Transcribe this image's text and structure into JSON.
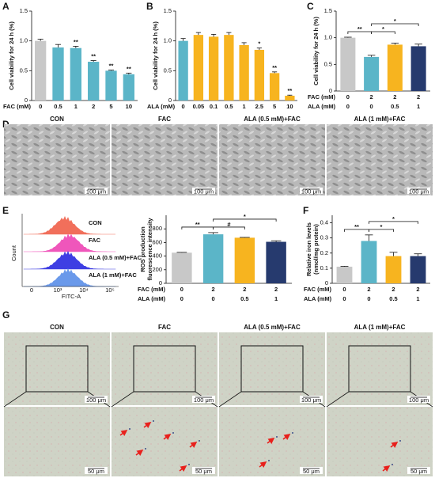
{
  "chart_data": [
    {
      "type": "bar",
      "label": "A",
      "ylabel": [
        "Cell viability for 24 h (%)"
      ],
      "rows": [
        {
          "name": "FAC (mM)",
          "categories": [
            "0",
            "0.5",
            "1",
            "2",
            "5",
            "10"
          ]
        }
      ],
      "values": [
        1.0,
        0.89,
        0.88,
        0.65,
        0.5,
        0.44
      ],
      "errors": [
        0.03,
        0.05,
        0.03,
        0.02,
        0.01,
        0.02
      ],
      "colors": [
        "#c8c8c8",
        "#5bb5c8",
        "#5bb5c8",
        "#5bb5c8",
        "#5bb5c8",
        "#5bb5c8"
      ],
      "significance": [
        null,
        null,
        "**",
        "**",
        "**",
        "**"
      ],
      "ylim": [
        0,
        1.5
      ],
      "yticks": [
        0,
        0.5,
        {
          "value": 1,
          "label": "1.0"
        },
        1.5
      ]
    },
    {
      "type": "bar",
      "label": "B",
      "ylabel": [
        "Cell viability for 24 h (%)"
      ],
      "rows": [
        {
          "name": "ALA (mM)",
          "categories": [
            "0",
            "0.05",
            "0.1",
            "0.5",
            "1",
            "2.5",
            "5",
            "10"
          ]
        }
      ],
      "values": [
        1.0,
        1.1,
        1.07,
        1.1,
        0.93,
        0.85,
        0.46,
        0.08
      ],
      "errors": [
        0.04,
        0.04,
        0.04,
        0.04,
        0.04,
        0.03,
        0.02,
        0.01
      ],
      "colors": [
        "#5bb5c8",
        "#f7b41f",
        "#f7b41f",
        "#f7b41f",
        "#f7b41f",
        "#f7b41f",
        "#f7b41f",
        "#f7b41f"
      ],
      "significance": [
        null,
        null,
        null,
        null,
        null,
        "*",
        "**",
        "**"
      ],
      "ylim": [
        0,
        1.5
      ],
      "yticks": [
        0,
        0.5,
        {
          "value": 1,
          "label": "1.0"
        },
        1.5
      ]
    },
    {
      "type": "bar",
      "label": "C",
      "ylabel": [
        "Cell viability for 24 h (%)"
      ],
      "rows": [
        {
          "name": "FAC (mM)",
          "categories": [
            "0",
            "2",
            "2",
            "2"
          ]
        },
        {
          "name": "ALA (mM)",
          "categories": [
            "0",
            "0",
            "0.5",
            "1"
          ]
        }
      ],
      "values": [
        1.0,
        0.64,
        0.87,
        0.84
      ],
      "errors": [
        0.01,
        0.03,
        0.03,
        0.04
      ],
      "colors": [
        "#c8c8c8",
        "#5bb5c8",
        "#f7b41f",
        "#263a6e"
      ],
      "brackets": [
        {
          "from": 0,
          "to": 1,
          "label": "**"
        },
        {
          "from": 1,
          "to": 2,
          "label": "*"
        },
        {
          "from": 1,
          "to": 3,
          "label": "*"
        }
      ],
      "ylim": [
        0,
        1.5
      ],
      "yticks": [
        0,
        0.5,
        {
          "value": 1,
          "label": "1.0"
        },
        1.5
      ]
    },
    {
      "type": "bar",
      "label": "E",
      "ylabel": [
        "ROS production",
        "fluorescence intensity"
      ],
      "rows": [
        {
          "name": "FAC (mM)",
          "categories": [
            "0",
            "2",
            "2",
            "2"
          ]
        },
        {
          "name": "ALA (mM)",
          "categories": [
            "0",
            "0",
            "0.5",
            "1"
          ]
        }
      ],
      "values": [
        450,
        720,
        670,
        610
      ],
      "errors": [
        5,
        25,
        5,
        15
      ],
      "colors": [
        "#c8c8c8",
        "#5bb5c8",
        "#f7b41f",
        "#263a6e"
      ],
      "brackets": [
        {
          "from": 0,
          "to": 1,
          "label": "**"
        },
        {
          "from": 1,
          "to": 2,
          "label": "#"
        },
        {
          "from": 1,
          "to": 3,
          "label": "*"
        }
      ],
      "ylim": [
        0,
        1000
      ],
      "yticks": [
        0,
        200,
        400,
        600,
        800
      ]
    },
    {
      "type": "bar",
      "label": "F",
      "ylabel": [
        "Relative iron levels",
        "(nmol/mg protein)"
      ],
      "rows": [
        {
          "name": "FAC (mM)",
          "categories": [
            "0",
            "2",
            "2",
            "2"
          ]
        },
        {
          "name": "ALA (mM)",
          "categories": [
            "0",
            "0",
            "0.5",
            "1"
          ]
        }
      ],
      "values": [
        0.11,
        0.28,
        0.18,
        0.18
      ],
      "errors": [
        0.003,
        0.04,
        0.025,
        0.015
      ],
      "colors": [
        "#c8c8c8",
        "#5bb5c8",
        "#f7b41f",
        "#263a6e"
      ],
      "brackets": [
        {
          "from": 0,
          "to": 1,
          "label": "**"
        },
        {
          "from": 1,
          "to": 2,
          "label": "*"
        },
        {
          "from": 1,
          "to": 3,
          "label": "*"
        }
      ],
      "ylim": [
        0,
        0.45
      ],
      "yticks": [
        0,
        0.1,
        0.2,
        0.3,
        0.4
      ]
    }
  ],
  "flow": {
    "conditions": [
      "CON",
      "FAC",
      "ALA (0.5 mM)+FAC",
      "ALA (1 mM)+FAC"
    ],
    "ylabel": "Count",
    "xlabel": "FITC-A",
    "xticks": [
      "0",
      "10³",
      "10⁴",
      "10⁵"
    ]
  },
  "micrographs_d": {
    "label": "D",
    "conditions": [
      "CON",
      "FAC",
      "ALA (0.5 mM)+FAC",
      "ALA (1 mM)+FAC"
    ],
    "scale": "100 μm"
  },
  "micrographs_g": {
    "label": "G",
    "conditions": [
      "CON",
      "FAC",
      "ALA (0.5 mM)+FAC",
      "ALA (1 mM)+FAC"
    ],
    "scale_top": "100 μm",
    "scale_bottom": "50 μm"
  }
}
